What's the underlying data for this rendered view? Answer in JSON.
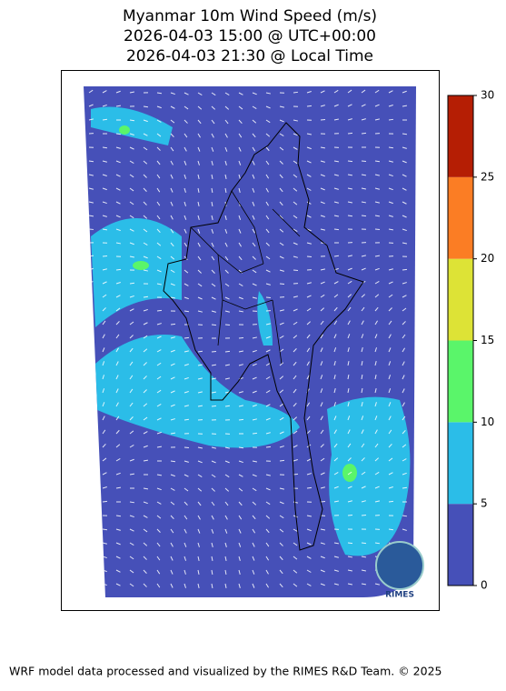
{
  "title": [
    "Myanmar 10m Wind Speed (m/s)",
    "2026-04-03 15:00 @ UTC+00:00",
    "2026-04-03 21:30 @ Local Time"
  ],
  "colorbar": {
    "ticks": [
      0,
      5,
      10,
      15,
      20,
      25,
      30
    ],
    "colors": [
      "#4650b8",
      "#2bbde8",
      "#5af56a",
      "#dde336",
      "#fb7d24",
      "#b51e04"
    ]
  },
  "logo": "RIMES",
  "footer": "WRF model data processed and visualized by the RIMES R&D Team. © 2025"
}
